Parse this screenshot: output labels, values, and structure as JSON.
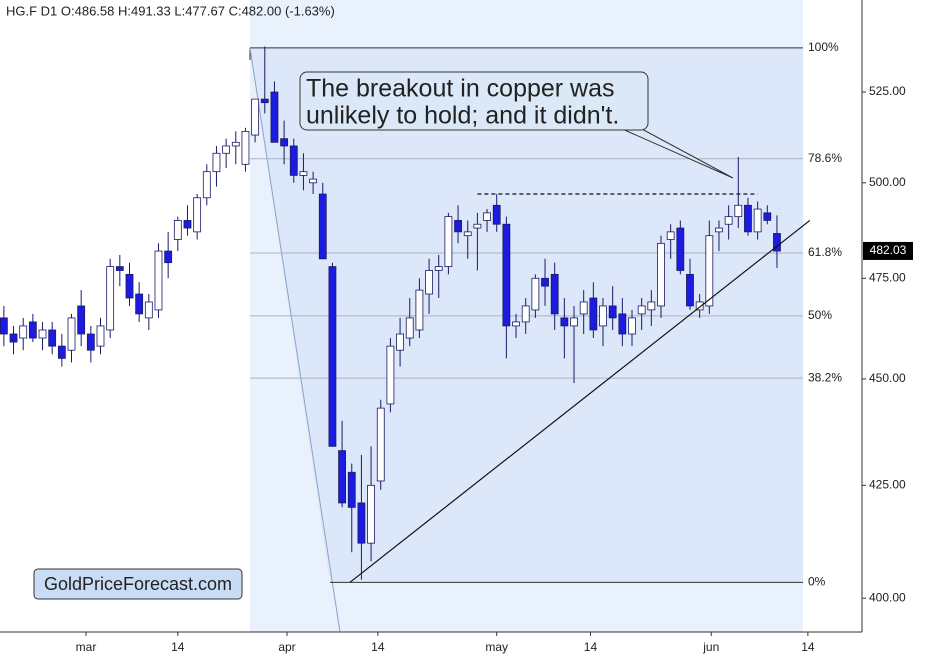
{
  "chart_data": {
    "type": "candlestick",
    "header": "HG.F  D1  O:486.58  H:491.33  L:477.67  C:482.00  (-1.63%)",
    "annotation": [
      "The breakout in copper was",
      "unlikely to hold; and it didn't."
    ],
    "watermark": "GoldPriceForecast.com",
    "log_scale": true,
    "ylim": [
      392.8,
      551.6
    ],
    "yticks": [
      {
        "value": 400,
        "label": "400.00"
      },
      {
        "value": 425,
        "label": "425.00"
      },
      {
        "value": 450,
        "label": "450.00"
      },
      {
        "value": 475,
        "label": "475.00"
      },
      {
        "value": 500,
        "label": "500.00"
      },
      {
        "value": 525,
        "label": "525.00"
      }
    ],
    "xlim": [
      -0.4,
      88.8
    ],
    "xticks": [
      {
        "value": 8.5,
        "label": "mar"
      },
      {
        "value": 18,
        "label": "14"
      },
      {
        "value": 29.3,
        "label": "apr"
      },
      {
        "value": 38.7,
        "label": "14"
      },
      {
        "value": 51,
        "label": "may"
      },
      {
        "value": 60.7,
        "label": "14"
      },
      {
        "value": 73.2,
        "label": "jun"
      },
      {
        "value": 83.2,
        "label": "14"
      }
    ],
    "up_color": "#ffffff",
    "down_color": "#1c1ce0",
    "edge_color": "#1a1a66",
    "open": [
      465,
      461,
      460,
      464,
      460,
      462,
      458,
      457,
      468,
      461,
      458,
      462,
      478,
      476,
      471,
      465,
      467,
      482,
      485,
      490,
      487,
      496,
      503,
      508,
      510,
      505,
      513,
      523,
      525,
      512,
      510,
      502,
      500,
      497,
      478,
      433,
      428,
      421,
      412,
      426,
      444,
      457,
      460,
      462,
      471,
      477,
      478,
      490,
      486,
      488,
      490,
      494,
      489,
      463,
      464,
      467,
      475,
      476,
      465,
      463,
      466,
      470,
      463,
      468,
      466,
      461,
      466,
      467,
      468,
      485,
      488,
      476,
      467,
      468,
      487,
      489,
      491,
      494,
      487,
      492,
      486.58
    ],
    "high": [
      468,
      463,
      465,
      466,
      464,
      464,
      461,
      466,
      472,
      463,
      465,
      480,
      481,
      479,
      474,
      471,
      484,
      487,
      491,
      494,
      497,
      505,
      510,
      512,
      514,
      515,
      523,
      538,
      528,
      517,
      512,
      508,
      503,
      500,
      479,
      440,
      430,
      432,
      434,
      445,
      460,
      465,
      470,
      475,
      480,
      481,
      492,
      494,
      490,
      492,
      493,
      497,
      491,
      466,
      470,
      476,
      480,
      479,
      470,
      468,
      472,
      474,
      470,
      473,
      470,
      467,
      470,
      472,
      486,
      489,
      490,
      480,
      471,
      490,
      490,
      494,
      507,
      496,
      495,
      494,
      491.33
    ],
    "low": [
      458,
      456,
      457,
      459,
      457,
      456,
      453,
      454,
      458,
      454,
      456,
      460,
      473,
      468,
      464,
      462,
      465,
      475,
      482,
      486,
      485,
      494,
      499,
      504,
      505,
      503,
      511,
      519,
      511,
      505,
      500,
      498,
      497,
      480,
      434,
      420,
      410,
      404,
      408,
      424,
      442,
      453,
      458,
      460,
      466,
      470,
      476,
      484,
      480,
      477,
      487,
      487,
      455,
      460,
      461,
      465,
      468,
      462,
      455,
      449,
      461,
      460,
      458,
      462,
      458,
      458,
      462,
      463,
      465,
      480,
      476,
      467,
      465,
      466,
      482,
      485,
      488,
      486,
      485,
      489,
      477.67
    ],
    "close": [
      461,
      459,
      463,
      460,
      462,
      458,
      455,
      465,
      461,
      457,
      463,
      478,
      477,
      470,
      466,
      469,
      482,
      479,
      490,
      488,
      496,
      503,
      508,
      510,
      511,
      514,
      523,
      522,
      511,
      510,
      502,
      503,
      501,
      480,
      434,
      421,
      420,
      412,
      425,
      443,
      458,
      461,
      465,
      472,
      477,
      478,
      491,
      487,
      487,
      489,
      492,
      489,
      463,
      464,
      468,
      475,
      473,
      466,
      463,
      465,
      469,
      462,
      468,
      465,
      461,
      465,
      468,
      469,
      484,
      487,
      477,
      468,
      469,
      486,
      488,
      491,
      494,
      487,
      493,
      490,
      482.0
    ],
    "last_price": 482.03,
    "levels": [
      {
        "value": 537.6,
        "label": "100%"
      },
      {
        "value": 506.5,
        "label": "78.6%"
      },
      {
        "value": 481.5,
        "label": "61.8%"
      },
      {
        "value": 465.5,
        "label": "50%"
      },
      {
        "value": 450.2,
        "label": "38.2%"
      },
      {
        "value": 403.4,
        "label": "0%"
      }
    ],
    "trendline": {
      "x": [
        35.8,
        83.4
      ],
      "y": [
        403.4,
        490
      ]
    },
    "resistance": {
      "x": [
        49,
        78
      ],
      "y": [
        497,
        497
      ]
    }
  }
}
